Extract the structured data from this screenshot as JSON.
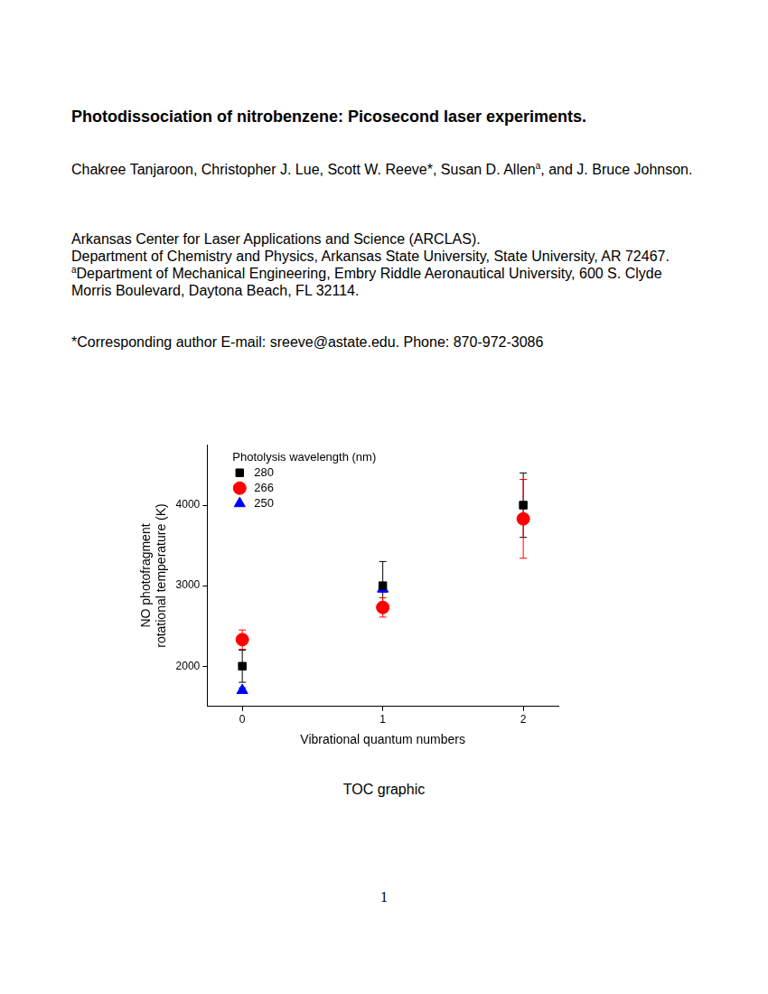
{
  "title": "Photodissociation of nitrobenzene: Picosecond laser experiments.",
  "authors": [
    {
      "text": "Chakree Tanjaroon, Christopher J. Lue, Scott W. Reeve*, Susan D. Allen"
    },
    {
      "sup": "a"
    },
    {
      "text": ", and J. Bruce Johnson."
    }
  ],
  "affiliations": [
    {
      "text": "Arkansas Center for Laser Applications and Science (ARCLAS)."
    },
    {
      "text": "Department of Chemistry and Physics, Arkansas State University, State University, AR 72467."
    },
    {
      "sup": "a",
      "text": "Department of Mechanical Engineering, Embry Riddle Aeronautical University, 600 S. Clyde Morris Boulevard, Daytona Beach, FL 32114."
    }
  ],
  "corresponding": "*Corresponding author E-mail: sreeve@astate.edu. Phone: 870-972-3086",
  "caption": "TOC graphic",
  "page_number": 1,
  "chart_data": {
    "type": "scatter",
    "x_label": "Vibrational quantum numbers",
    "y_label": [
      "NO photofragment",
      "rotational temperature (K)"
    ],
    "legend_title": "Photolysis wavelength (nm)",
    "legend": "upper left",
    "grid": false,
    "x": [
      0,
      1,
      2
    ],
    "xlim": [
      -0.25,
      2.25
    ],
    "xticks": [
      0,
      1,
      2
    ],
    "ylim": [
      1500,
      4750
    ],
    "yticks": [
      2000,
      3000,
      4000
    ],
    "series": [
      {
        "name": "280",
        "color": "#000000",
        "marker": "square",
        "values": [
          2000,
          3000,
          4000
        ],
        "errors": [
          200,
          300,
          400
        ]
      },
      {
        "name": "266",
        "color": "#ff0000",
        "marker": "circle",
        "values": [
          2330,
          2730,
          3830
        ],
        "errors": [
          120,
          120,
          490
        ]
      },
      {
        "name": "250",
        "color": "#0000ff",
        "marker": "triangle",
        "values": [
          1700,
          2960,
          null
        ],
        "errors": [
          30,
          40,
          null
        ]
      }
    ]
  }
}
